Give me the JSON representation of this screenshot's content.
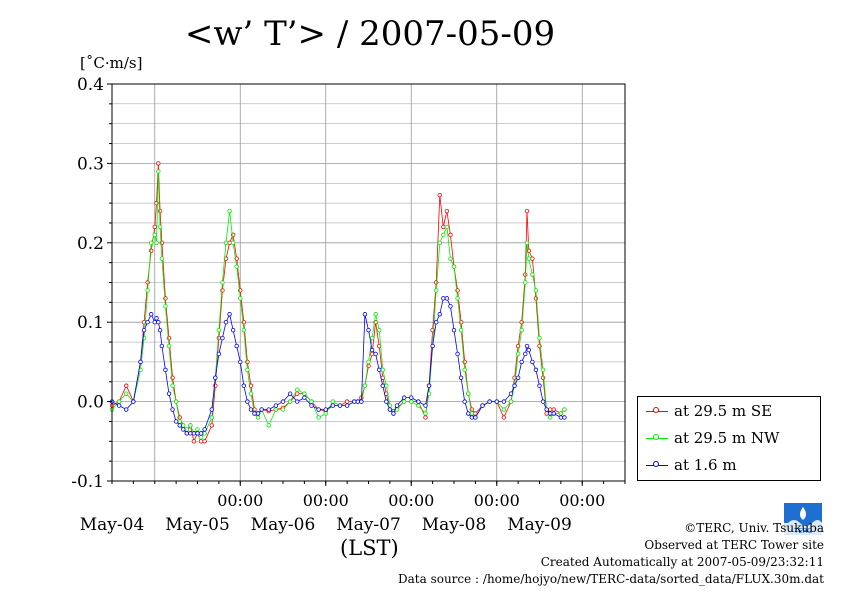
{
  "title": "<w’ T’> / 2007-05-09",
  "unit": "[˚C·m/s]",
  "xlabel": "(LST)",
  "credits": {
    "copyright": "©TERC, Univ. Tsukuba",
    "observed": "Observed at TERC Tower site",
    "created": "Created Automatically at 2007-05-09/23:32:11",
    "source": "Data source : /home/hojyo/new/TERC-data/sorted_data/FLUX.30m.dat"
  },
  "colors": {
    "se": "#ff0000",
    "nw": "#00ee00",
    "low": "#0000ff",
    "grid": "#999999"
  },
  "chart_data": {
    "type": "line",
    "xlabel": "(LST)",
    "ylabel": "[˚C·m/s]",
    "x_unit": "hours since May-04 00:00 (axis starts May-03 12:00)",
    "xlim": [
      -12,
      132
    ],
    "ylim": [
      -0.1,
      0.4
    ],
    "yticks": [
      "-0.1",
      "0.0",
      "0.1",
      "0.2",
      "0.3",
      "0.4"
    ],
    "xticks": [
      "00:00",
      "00:00",
      "00:00",
      "00:00",
      "00:00"
    ],
    "day_labels": [
      "May-04",
      "May-05",
      "May-06",
      "May-07",
      "May-08",
      "May-09"
    ],
    "legend_position": "outside-right",
    "series": [
      {
        "name": "at 29.5 m SE",
        "color": "#ff0000",
        "points": [
          [
            -12,
            -0.005
          ],
          [
            -10,
            0.0
          ],
          [
            -8,
            0.02
          ],
          [
            -6,
            0.0
          ],
          [
            -4,
            0.05
          ],
          [
            -3,
            0.1
          ],
          [
            -2,
            0.15
          ],
          [
            -1,
            0.19
          ],
          [
            0,
            0.22
          ],
          [
            0.5,
            0.25
          ],
          [
            1,
            0.3
          ],
          [
            1.5,
            0.24
          ],
          [
            2,
            0.2
          ],
          [
            3,
            0.13
          ],
          [
            4,
            0.08
          ],
          [
            5,
            0.03
          ],
          [
            6,
            0.0
          ],
          [
            7,
            -0.02
          ],
          [
            8,
            -0.03
          ],
          [
            9,
            -0.04
          ],
          [
            10,
            -0.03
          ],
          [
            11,
            -0.05
          ],
          [
            12,
            -0.04
          ],
          [
            13,
            -0.05
          ],
          [
            14,
            -0.05
          ],
          [
            16,
            -0.03
          ],
          [
            17,
            0.02
          ],
          [
            18,
            0.08
          ],
          [
            19,
            0.14
          ],
          [
            20,
            0.18
          ],
          [
            21,
            0.2
          ],
          [
            22,
            0.21
          ],
          [
            23,
            0.18
          ],
          [
            24,
            0.14
          ],
          [
            25,
            0.1
          ],
          [
            26,
            0.05
          ],
          [
            27,
            0.02
          ],
          [
            28,
            -0.01
          ],
          [
            29,
            -0.015
          ],
          [
            30,
            -0.01
          ],
          [
            32,
            -0.012
          ],
          [
            34,
            -0.01
          ],
          [
            36,
            -0.008
          ],
          [
            38,
            0.0
          ],
          [
            40,
            0.01
          ],
          [
            42,
            0.01
          ],
          [
            44,
            0.0
          ],
          [
            46,
            -0.01
          ],
          [
            48,
            -0.012
          ],
          [
            50,
            -0.005
          ],
          [
            52,
            -0.005
          ],
          [
            54,
            0.0
          ],
          [
            56,
            0.0
          ],
          [
            57,
            0.0
          ],
          [
            58,
            0.005
          ],
          [
            59,
            0.02
          ],
          [
            60,
            0.045
          ],
          [
            61,
            0.06
          ],
          [
            62,
            0.1
          ],
          [
            63,
            0.07
          ],
          [
            64,
            0.03
          ],
          [
            65,
            0.01
          ],
          [
            66,
            -0.01
          ],
          [
            67,
            -0.012
          ],
          [
            68,
            -0.008
          ],
          [
            70,
            0.0
          ],
          [
            72,
            0.0
          ],
          [
            74,
            0.0
          ],
          [
            76,
            -0.02
          ],
          [
            77,
            0.02
          ],
          [
            78,
            0.09
          ],
          [
            79,
            0.15
          ],
          [
            80,
            0.26
          ],
          [
            81,
            0.22
          ],
          [
            82,
            0.24
          ],
          [
            83,
            0.21
          ],
          [
            84,
            0.17
          ],
          [
            85,
            0.14
          ],
          [
            86,
            0.1
          ],
          [
            87,
            0.05
          ],
          [
            88,
            0.01
          ],
          [
            89,
            -0.01
          ],
          [
            90,
            -0.015
          ],
          [
            92,
            -0.005
          ],
          [
            94,
            0.0
          ],
          [
            96,
            0.0
          ],
          [
            98,
            -0.02
          ],
          [
            100,
            0.0
          ],
          [
            101,
            0.03
          ],
          [
            102,
            0.07
          ],
          [
            103,
            0.1
          ],
          [
            104,
            0.16
          ],
          [
            104.5,
            0.24
          ],
          [
            105,
            0.19
          ],
          [
            106,
            0.18
          ],
          [
            107,
            0.13
          ],
          [
            108,
            0.07
          ],
          [
            109,
            0.03
          ],
          [
            110,
            -0.015
          ],
          [
            111,
            -0.01
          ],
          [
            112,
            -0.01
          ],
          [
            114,
            -0.015
          ],
          [
            115,
            -0.01
          ]
        ]
      },
      {
        "name": "at 29.5 m NW",
        "color": "#00ee00",
        "points": [
          [
            -12,
            -0.01
          ],
          [
            -10,
            0.0
          ],
          [
            -8,
            0.01
          ],
          [
            -6,
            0.0
          ],
          [
            -4,
            0.04
          ],
          [
            -3,
            0.08
          ],
          [
            -2,
            0.14
          ],
          [
            -1,
            0.2
          ],
          [
            0,
            0.21
          ],
          [
            0.5,
            0.2
          ],
          [
            1,
            0.29
          ],
          [
            1.5,
            0.22
          ],
          [
            2,
            0.18
          ],
          [
            3,
            0.12
          ],
          [
            4,
            0.07
          ],
          [
            5,
            0.02
          ],
          [
            6,
            0.0
          ],
          [
            7,
            -0.025
          ],
          [
            8,
            -0.03
          ],
          [
            9,
            -0.035
          ],
          [
            10,
            -0.03
          ],
          [
            11,
            -0.04
          ],
          [
            12,
            -0.035
          ],
          [
            13,
            -0.045
          ],
          [
            14,
            -0.04
          ],
          [
            16,
            -0.02
          ],
          [
            17,
            0.03
          ],
          [
            18,
            0.09
          ],
          [
            19,
            0.15
          ],
          [
            20,
            0.2
          ],
          [
            21,
            0.24
          ],
          [
            22,
            0.2
          ],
          [
            23,
            0.17
          ],
          [
            24,
            0.13
          ],
          [
            25,
            0.09
          ],
          [
            26,
            0.04
          ],
          [
            27,
            0.01
          ],
          [
            28,
            -0.015
          ],
          [
            29,
            -0.02
          ],
          [
            30,
            -0.01
          ],
          [
            32,
            -0.03
          ],
          [
            34,
            -0.01
          ],
          [
            36,
            -0.01
          ],
          [
            38,
            0.0
          ],
          [
            40,
            0.015
          ],
          [
            42,
            0.01
          ],
          [
            44,
            0.0
          ],
          [
            46,
            -0.02
          ],
          [
            48,
            -0.015
          ],
          [
            50,
            0.0
          ],
          [
            52,
            -0.005
          ],
          [
            54,
            -0.005
          ],
          [
            56,
            0.0
          ],
          [
            57,
            0.0
          ],
          [
            58,
            0.0
          ],
          [
            59,
            0.02
          ],
          [
            60,
            0.05
          ],
          [
            61,
            0.08
          ],
          [
            62,
            0.11
          ],
          [
            63,
            0.09
          ],
          [
            64,
            0.04
          ],
          [
            65,
            0.02
          ],
          [
            66,
            -0.005
          ],
          [
            67,
            -0.015
          ],
          [
            68,
            -0.01
          ],
          [
            70,
            0.0
          ],
          [
            72,
            0.0
          ],
          [
            74,
            -0.005
          ],
          [
            76,
            -0.015
          ],
          [
            77,
            0.01
          ],
          [
            78,
            0.07
          ],
          [
            79,
            0.14
          ],
          [
            80,
            0.2
          ],
          [
            81,
            0.21
          ],
          [
            82,
            0.22
          ],
          [
            83,
            0.18
          ],
          [
            84,
            0.17
          ],
          [
            85,
            0.13
          ],
          [
            86,
            0.09
          ],
          [
            87,
            0.04
          ],
          [
            88,
            0.01
          ],
          [
            89,
            -0.015
          ],
          [
            90,
            -0.02
          ],
          [
            92,
            -0.005
          ],
          [
            94,
            0.0
          ],
          [
            96,
            0.0
          ],
          [
            98,
            -0.01
          ],
          [
            100,
            0.0
          ],
          [
            101,
            0.02
          ],
          [
            102,
            0.06
          ],
          [
            103,
            0.09
          ],
          [
            104,
            0.15
          ],
          [
            104.5,
            0.2
          ],
          [
            105,
            0.18
          ],
          [
            106,
            0.16
          ],
          [
            107,
            0.14
          ],
          [
            108,
            0.08
          ],
          [
            109,
            0.04
          ],
          [
            110,
            -0.01
          ],
          [
            111,
            -0.02
          ],
          [
            112,
            -0.015
          ],
          [
            114,
            -0.015
          ],
          [
            115,
            -0.01
          ]
        ]
      },
      {
        "name": "at 1.6 m",
        "color": "#0000ff",
        "points": [
          [
            -12,
            0.0
          ],
          [
            -10,
            -0.005
          ],
          [
            -8,
            -0.01
          ],
          [
            -6,
            0.0
          ],
          [
            -4,
            0.05
          ],
          [
            -3,
            0.09
          ],
          [
            -2,
            0.1
          ],
          [
            -1,
            0.11
          ],
          [
            0,
            0.1
          ],
          [
            0.5,
            0.105
          ],
          [
            1,
            0.1
          ],
          [
            1.5,
            0.09
          ],
          [
            2,
            0.07
          ],
          [
            3,
            0.04
          ],
          [
            4,
            0.01
          ],
          [
            5,
            -0.01
          ],
          [
            6,
            -0.025
          ],
          [
            7,
            -0.03
          ],
          [
            8,
            -0.035
          ],
          [
            9,
            -0.04
          ],
          [
            10,
            -0.04
          ],
          [
            11,
            -0.04
          ],
          [
            12,
            -0.04
          ],
          [
            13,
            -0.04
          ],
          [
            14,
            -0.035
          ],
          [
            16,
            -0.01
          ],
          [
            17,
            0.03
          ],
          [
            18,
            0.06
          ],
          [
            19,
            0.08
          ],
          [
            20,
            0.1
          ],
          [
            21,
            0.11
          ],
          [
            22,
            0.09
          ],
          [
            23,
            0.07
          ],
          [
            24,
            0.05
          ],
          [
            25,
            0.02
          ],
          [
            26,
            0.0
          ],
          [
            27,
            -0.01
          ],
          [
            28,
            -0.015
          ],
          [
            29,
            -0.015
          ],
          [
            30,
            -0.01
          ],
          [
            32,
            -0.01
          ],
          [
            34,
            -0.005
          ],
          [
            36,
            0.0
          ],
          [
            38,
            0.01
          ],
          [
            40,
            0.0
          ],
          [
            42,
            0.005
          ],
          [
            44,
            -0.005
          ],
          [
            46,
            -0.01
          ],
          [
            48,
            -0.01
          ],
          [
            50,
            -0.005
          ],
          [
            52,
            -0.005
          ],
          [
            54,
            -0.005
          ],
          [
            56,
            0.0
          ],
          [
            57,
            0.0
          ],
          [
            58,
            0.0
          ],
          [
            59,
            0.11
          ],
          [
            60,
            0.09
          ],
          [
            61,
            0.065
          ],
          [
            62,
            0.06
          ],
          [
            63,
            0.04
          ],
          [
            64,
            0.02
          ],
          [
            65,
            0.0
          ],
          [
            66,
            -0.01
          ],
          [
            67,
            -0.015
          ],
          [
            68,
            -0.005
          ],
          [
            70,
            0.005
          ],
          [
            72,
            0.005
          ],
          [
            74,
            0.0
          ],
          [
            76,
            -0.005
          ],
          [
            77,
            0.02
          ],
          [
            78,
            0.07
          ],
          [
            79,
            0.1
          ],
          [
            80,
            0.11
          ],
          [
            81,
            0.13
          ],
          [
            82,
            0.13
          ],
          [
            83,
            0.12
          ],
          [
            84,
            0.09
          ],
          [
            85,
            0.06
          ],
          [
            86,
            0.03
          ],
          [
            87,
            0.0
          ],
          [
            88,
            -0.015
          ],
          [
            89,
            -0.02
          ],
          [
            90,
            -0.02
          ],
          [
            92,
            -0.005
          ],
          [
            94,
            0.0
          ],
          [
            96,
            0.0
          ],
          [
            98,
            0.0
          ],
          [
            100,
            0.01
          ],
          [
            101,
            0.02
          ],
          [
            102,
            0.03
          ],
          [
            103,
            0.05
          ],
          [
            104,
            0.06
          ],
          [
            104.5,
            0.07
          ],
          [
            105,
            0.065
          ],
          [
            106,
            0.05
          ],
          [
            107,
            0.04
          ],
          [
            108,
            0.02
          ],
          [
            109,
            0.0
          ],
          [
            110,
            -0.01
          ],
          [
            111,
            -0.015
          ],
          [
            112,
            -0.015
          ],
          [
            114,
            -0.02
          ],
          [
            115,
            -0.02
          ]
        ]
      }
    ]
  }
}
